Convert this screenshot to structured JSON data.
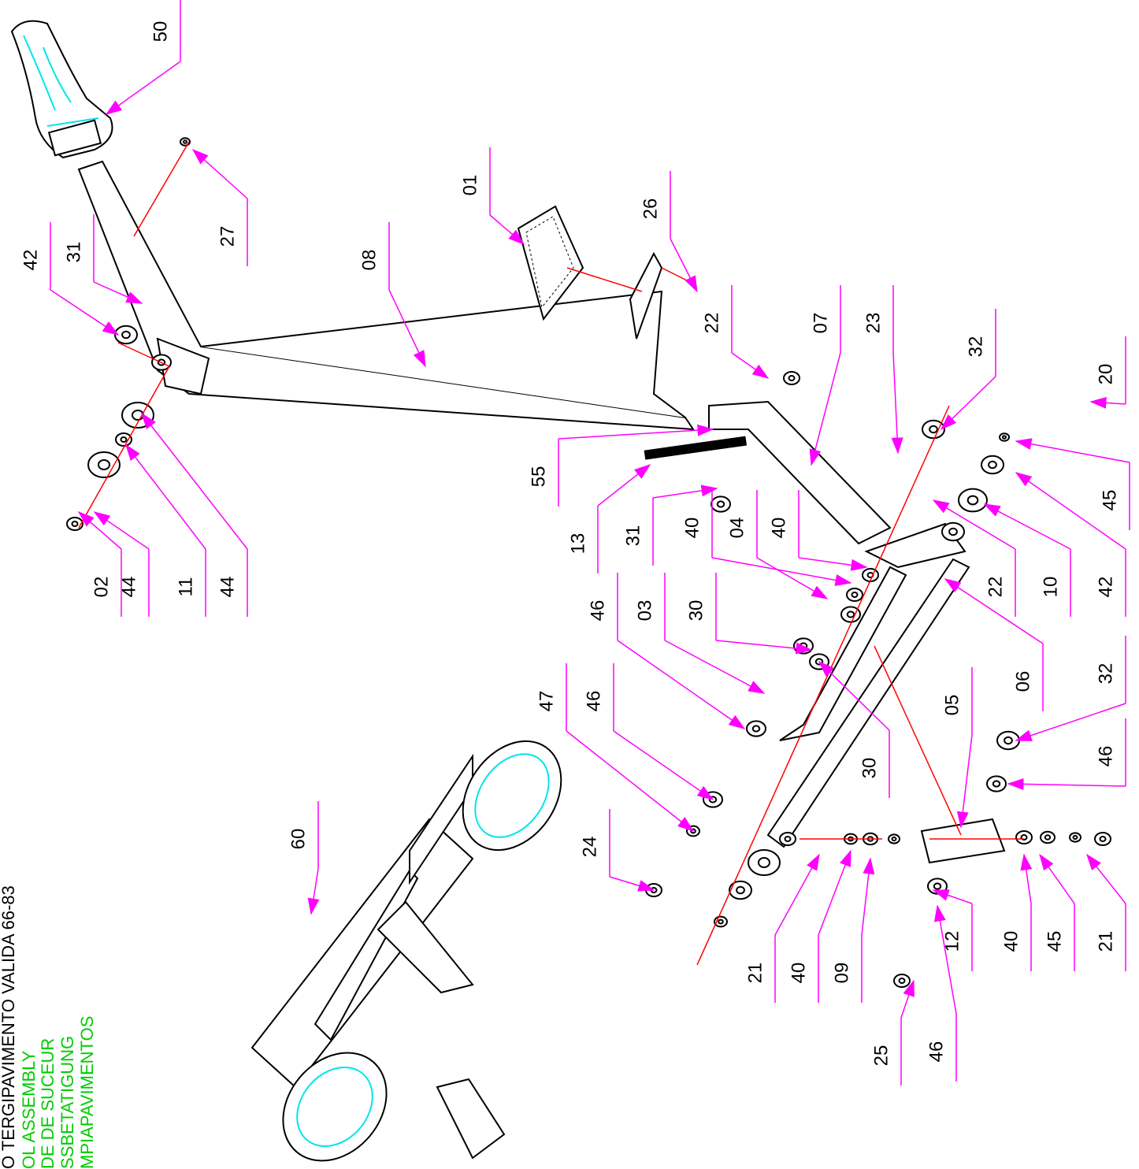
{
  "title_block": {
    "lines": [
      "O TERGIPAVIMENTO VALIDA 66-83",
      "OL ASSEMBLY",
      "DE DE SUCEUR",
      "SSBETATIGUNG",
      "MPIAPAVIMENTOS"
    ]
  },
  "callouts": [
    "50",
    "01",
    "26",
    "27",
    "42",
    "31",
    "08",
    "22",
    "07",
    "23",
    "32",
    "20",
    "55",
    "13",
    "31",
    "40",
    "04",
    "40",
    "02",
    "44",
    "11",
    "44",
    "22",
    "10",
    "42",
    "46",
    "03",
    "30",
    "06",
    "32",
    "47",
    "46",
    "05",
    "30",
    "46",
    "60",
    "24",
    "21",
    "40",
    "09",
    "12",
    "40",
    "45",
    "21",
    "25",
    "46",
    "45"
  ]
}
